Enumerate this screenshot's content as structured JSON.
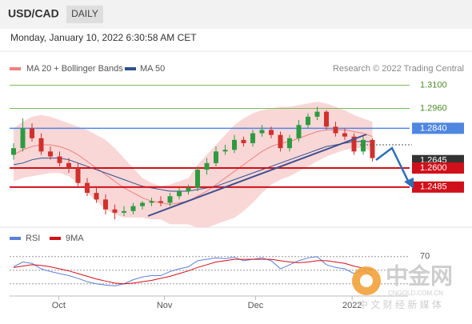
{
  "chart_data": {
    "type": "candlestick",
    "title": "USD/CAD",
    "timeframe": "DAILY",
    "timestamp": "Monday, January 10, 2022 6:30:58 AM CET",
    "source": "Research © 2022 Trading Central",
    "categories": [
      null,
      null,
      null,
      null,
      null,
      null,
      null,
      null,
      null,
      null,
      null,
      null,
      null,
      null,
      null,
      null,
      null,
      null,
      null,
      null,
      null,
      null,
      null,
      null,
      null,
      null,
      null,
      null,
      null,
      null,
      null,
      null,
      null,
      null,
      null,
      null,
      null,
      null,
      null,
      null
    ],
    "xticks": [
      {
        "value": 4.9,
        "label": "Oct"
      },
      {
        "value": 16.4,
        "label": "Nov"
      },
      {
        "value": 26.3,
        "label": "Dec"
      },
      {
        "value": 36.8,
        "label": "2022"
      }
    ],
    "ylim": [
      1.226,
      1.318
    ],
    "up_color": "#2e9b41",
    "down_color": "#d0312d",
    "open": [
      1.268,
      1.272,
      1.284,
      1.278,
      1.27,
      1.267,
      1.263,
      1.26,
      1.251,
      1.245,
      1.241,
      1.235,
      1.233,
      1.234,
      1.237,
      1.239,
      1.24,
      1.239,
      1.243,
      1.246,
      1.248,
      1.259,
      1.263,
      1.27,
      1.271,
      1.277,
      1.275,
      1.281,
      1.283,
      1.28,
      1.272,
      1.278,
      1.286,
      1.291,
      1.294,
      1.285,
      1.281,
      1.279,
      1.27,
      1.277
    ],
    "high": [
      1.275,
      1.29,
      1.287,
      1.281,
      1.273,
      1.27,
      1.266,
      1.263,
      1.254,
      1.248,
      1.244,
      1.238,
      1.237,
      1.239,
      1.24,
      1.242,
      1.243,
      1.245,
      1.248,
      1.25,
      1.261,
      1.266,
      1.273,
      1.274,
      1.28,
      1.279,
      1.283,
      1.286,
      1.285,
      1.282,
      1.28,
      1.289,
      1.293,
      1.297,
      1.295,
      1.288,
      1.284,
      1.281,
      1.279,
      1.278
    ],
    "low": [
      1.265,
      1.27,
      1.276,
      1.268,
      1.265,
      1.261,
      1.257,
      1.249,
      1.243,
      1.239,
      1.232,
      1.229,
      1.231,
      1.232,
      1.235,
      1.237,
      1.237,
      1.237,
      1.241,
      1.244,
      1.246,
      1.256,
      1.261,
      1.268,
      1.269,
      1.273,
      1.273,
      1.279,
      1.278,
      1.27,
      1.27,
      1.276,
      1.284,
      1.289,
      1.283,
      1.279,
      1.277,
      1.268,
      1.268,
      1.264
    ],
    "close": [
      1.272,
      1.284,
      1.278,
      1.27,
      1.267,
      1.263,
      1.26,
      1.251,
      1.245,
      1.241,
      1.235,
      1.233,
      1.234,
      1.237,
      1.239,
      1.24,
      1.239,
      1.243,
      1.246,
      1.248,
      1.259,
      1.263,
      1.27,
      1.271,
      1.277,
      1.275,
      1.281,
      1.283,
      1.28,
      1.272,
      1.278,
      1.286,
      1.291,
      1.294,
      1.285,
      1.281,
      1.279,
      1.27,
      1.277,
      1.266
    ],
    "bollinger": {
      "name": "MA 20 + Bollinger Bands",
      "color": "#f08080",
      "band_color": "#f7c9c9",
      "values": [
        1.268,
        1.271,
        1.273,
        1.274,
        1.274,
        1.273,
        1.271,
        1.268,
        1.264,
        1.26,
        1.256,
        1.252,
        1.248,
        1.245,
        1.242,
        1.24,
        1.239,
        1.238,
        1.239,
        1.24,
        1.243,
        1.246,
        1.25,
        1.254,
        1.258,
        1.262,
        1.266,
        1.27,
        1.273,
        1.275,
        1.276,
        1.278,
        1.28,
        1.282,
        1.283,
        1.283,
        1.283,
        1.282,
        1.281,
        1.279
      ],
      "upper": [
        1.284,
        1.288,
        1.291,
        1.292,
        1.291,
        1.289,
        1.287,
        1.285,
        1.283,
        1.28,
        1.277,
        1.272,
        1.266,
        1.26,
        1.254,
        1.251,
        1.249,
        1.25,
        1.252,
        1.254,
        1.262,
        1.268,
        1.274,
        1.28,
        1.286,
        1.29,
        1.293,
        1.295,
        1.296,
        1.297,
        1.297,
        1.298,
        1.299,
        1.3,
        1.299,
        1.297,
        1.295,
        1.292,
        1.29,
        1.288
      ],
      "lower": [
        1.252,
        1.254,
        1.255,
        1.256,
        1.257,
        1.257,
        1.255,
        1.251,
        1.245,
        1.24,
        1.235,
        1.232,
        1.23,
        1.23,
        1.23,
        1.229,
        1.229,
        1.226,
        1.226,
        1.226,
        1.224,
        1.224,
        1.226,
        1.228,
        1.23,
        1.234,
        1.239,
        1.245,
        1.25,
        1.253,
        1.255,
        1.258,
        1.261,
        1.264,
        1.267,
        1.269,
        1.271,
        1.272,
        1.272,
        1.27
      ]
    },
    "ma50": {
      "name": "MA 50",
      "color": "#2f4f8f",
      "values": [
        1.262,
        1.263,
        1.265,
        1.266,
        1.266,
        1.266,
        1.265,
        1.263,
        1.261,
        1.259,
        1.257,
        1.255,
        1.253,
        1.251,
        1.249,
        1.248,
        1.247,
        1.246,
        1.246,
        1.246,
        1.247,
        1.248,
        1.249,
        1.251,
        1.253,
        1.255,
        1.257,
        1.259,
        1.261,
        1.263,
        1.265,
        1.267,
        1.269,
        1.271,
        1.273,
        1.274,
        1.275,
        1.276,
        1.276,
        1.276
      ]
    },
    "levels": [
      {
        "value": 1.31,
        "label": "1.3100",
        "color": "#7dbb5a",
        "box": false,
        "line": true,
        "width": 1
      },
      {
        "value": 1.296,
        "label": "1.2960",
        "color": "#7dbb5a",
        "box": false,
        "line": true,
        "width": 1
      },
      {
        "value": 1.284,
        "label": "1.2840",
        "color": "#4f86e0",
        "box": true,
        "line": true,
        "width": 1.5
      },
      {
        "value": 1.2645,
        "label": "1.2645",
        "color": "#333333",
        "box": true,
        "line": false,
        "width": 1
      },
      {
        "value": 1.26,
        "label": "1.2600",
        "color": "#d0101a",
        "box": true,
        "line": true,
        "width": 2
      },
      {
        "value": 1.2485,
        "label": "1.2485",
        "color": "#d0101a",
        "box": true,
        "line": true,
        "width": 2
      }
    ],
    "rsi": {
      "ylim": [
        12,
        85
      ],
      "yticks": [
        70
      ],
      "levels": [
        70,
        50,
        30
      ],
      "series": [
        {
          "name": "RSI",
          "color": "#5b7fd6",
          "values": [
            55,
            62,
            60,
            52,
            48,
            45,
            42,
            38,
            33,
            30,
            28,
            27,
            30,
            36,
            40,
            42,
            42,
            48,
            52,
            55,
            64,
            66,
            68,
            67,
            69,
            64,
            66,
            68,
            64,
            52,
            58,
            64,
            68,
            70,
            58,
            54,
            52,
            45,
            50,
            42
          ]
        },
        {
          "name": "9MA",
          "color": "#d0101a",
          "values": [
            54,
            56,
            58,
            57,
            55,
            52,
            49,
            45,
            41,
            37,
            34,
            31,
            30,
            31,
            33,
            35,
            38,
            41,
            45,
            49,
            54,
            58,
            62,
            64,
            66,
            66,
            66,
            66,
            66,
            64,
            62,
            61,
            62,
            64,
            64,
            62,
            60,
            56,
            53,
            50
          ]
        }
      ]
    }
  },
  "watermark": {
    "brand": "中金网",
    "domain": "CNGOLD.COM.CN",
    "tagline": "中 文 财 经 新 媒 体"
  }
}
